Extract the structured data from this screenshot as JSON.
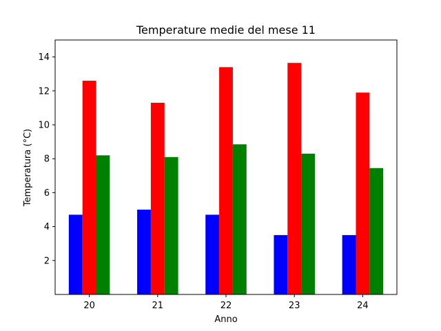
{
  "chart_data": {
    "type": "bar",
    "title": "Temperature medie del mese 11",
    "xlabel": "Anno",
    "ylabel": "Temperatura (°C)",
    "categories": [
      "20",
      "21",
      "22",
      "23",
      "24"
    ],
    "ylim": [
      0,
      15
    ],
    "yticks": [
      "2",
      "4",
      "6",
      "8",
      "10",
      "12",
      "14"
    ],
    "grid": false,
    "series": [
      {
        "color": "#0000ff",
        "values": [
          4.7,
          5.0,
          4.7,
          3.5,
          3.5
        ]
      },
      {
        "color": "#ff0000",
        "values": [
          12.6,
          11.3,
          13.4,
          13.65,
          11.9
        ]
      },
      {
        "color": "#008000",
        "values": [
          8.2,
          8.1,
          8.85,
          8.3,
          7.45
        ]
      }
    ]
  }
}
